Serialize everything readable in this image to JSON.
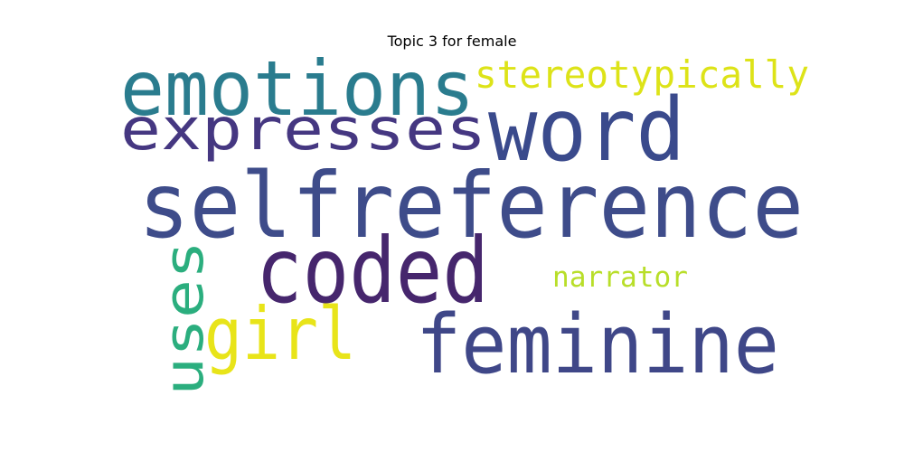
{
  "title": "Topic 3 for female",
  "words": [
    {
      "text": "emotions",
      "color": "#2a7c8e"
    },
    {
      "text": "stereotypically",
      "color": "#dde318"
    },
    {
      "text": "expresses",
      "color": "#453781"
    },
    {
      "text": "word",
      "color": "#3a4a8c"
    },
    {
      "text": "selfreference",
      "color": "#3e4c8a"
    },
    {
      "text": "coded",
      "color": "#46266d"
    },
    {
      "text": "uses",
      "color": "#2bae7e"
    },
    {
      "text": "narrator",
      "color": "#b8de29"
    },
    {
      "text": "girl",
      "color": "#e8e419"
    },
    {
      "text": "feminine",
      "color": "#3f4788"
    }
  ]
}
